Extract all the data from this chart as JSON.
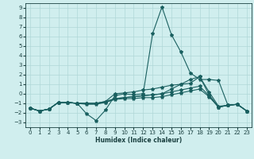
{
  "xlabel": "Humidex (Indice chaleur)",
  "xlim": [
    -0.5,
    23.5
  ],
  "ylim": [
    -3.5,
    9.5
  ],
  "yticks": [
    -3,
    -2,
    -1,
    0,
    1,
    2,
    3,
    4,
    5,
    6,
    7,
    8,
    9
  ],
  "xticks": [
    0,
    1,
    2,
    3,
    4,
    5,
    6,
    7,
    8,
    9,
    10,
    11,
    12,
    13,
    14,
    15,
    16,
    17,
    18,
    19,
    20,
    21,
    22,
    23
  ],
  "bg_color": "#d0eeee",
  "grid_color": "#b0d8d8",
  "line_color": "#1a6060",
  "lines": [
    {
      "x": [
        0,
        1,
        2,
        3,
        4,
        5,
        6,
        7,
        8,
        9,
        10,
        11,
        12,
        13,
        14,
        15,
        16,
        17,
        18,
        19,
        20,
        21,
        22,
        23
      ],
      "y": [
        -1.5,
        -1.8,
        -1.6,
        -0.9,
        -0.9,
        -1.0,
        -2.1,
        -2.8,
        -1.7,
        -0.2,
        0.0,
        -0.1,
        0.0,
        6.3,
        9.1,
        6.2,
        4.4,
        2.2,
        1.5,
        1.5,
        1.4,
        -1.2,
        -1.1,
        -1.8
      ]
    },
    {
      "x": [
        0,
        1,
        2,
        3,
        4,
        5,
        6,
        7,
        8,
        9,
        10,
        11,
        12,
        13,
        14,
        15,
        16,
        17,
        18,
        19,
        20,
        21,
        22,
        23
      ],
      "y": [
        -1.5,
        -1.8,
        -1.6,
        -0.9,
        -0.9,
        -1.0,
        -1.0,
        -1.0,
        -0.8,
        0.0,
        0.1,
        0.2,
        0.4,
        0.5,
        0.7,
        0.9,
        1.0,
        1.1,
        1.8,
        0.2,
        -1.3,
        -1.2,
        -1.1,
        -1.8
      ]
    },
    {
      "x": [
        0,
        1,
        2,
        3,
        4,
        5,
        6,
        7,
        8,
        9,
        10,
        11,
        12,
        13,
        14,
        15,
        16,
        17,
        18,
        19,
        20,
        21,
        22,
        23
      ],
      "y": [
        -1.5,
        -1.8,
        -1.6,
        -0.9,
        -0.9,
        -1.0,
        -1.0,
        -1.0,
        -0.9,
        -0.5,
        -0.4,
        -0.3,
        -0.2,
        -0.1,
        0.0,
        0.5,
        1.0,
        1.5,
        1.8,
        -0.1,
        -1.4,
        -1.2,
        -1.1,
        -1.8
      ]
    },
    {
      "x": [
        0,
        1,
        2,
        3,
        4,
        5,
        6,
        7,
        8,
        9,
        10,
        11,
        12,
        13,
        14,
        15,
        16,
        17,
        18,
        19,
        20,
        21,
        22,
        23
      ],
      "y": [
        -1.5,
        -1.8,
        -1.6,
        -0.9,
        -0.9,
        -1.0,
        -1.0,
        -1.0,
        -0.8,
        -0.5,
        -0.4,
        -0.3,
        -0.2,
        -0.1,
        0.0,
        0.2,
        0.4,
        0.6,
        0.8,
        -0.2,
        -1.4,
        -1.2,
        -1.1,
        -1.8
      ]
    },
    {
      "x": [
        0,
        1,
        2,
        3,
        4,
        5,
        6,
        7,
        8,
        9,
        10,
        11,
        12,
        13,
        14,
        15,
        16,
        17,
        18,
        19,
        20,
        21,
        22,
        23
      ],
      "y": [
        -1.5,
        -1.8,
        -1.6,
        -0.9,
        -0.9,
        -1.0,
        -1.1,
        -1.1,
        -0.9,
        -0.6,
        -0.5,
        -0.5,
        -0.4,
        -0.4,
        -0.3,
        -0.1,
        0.1,
        0.3,
        0.5,
        -0.3,
        -1.4,
        -1.2,
        -1.1,
        -1.8
      ]
    }
  ]
}
